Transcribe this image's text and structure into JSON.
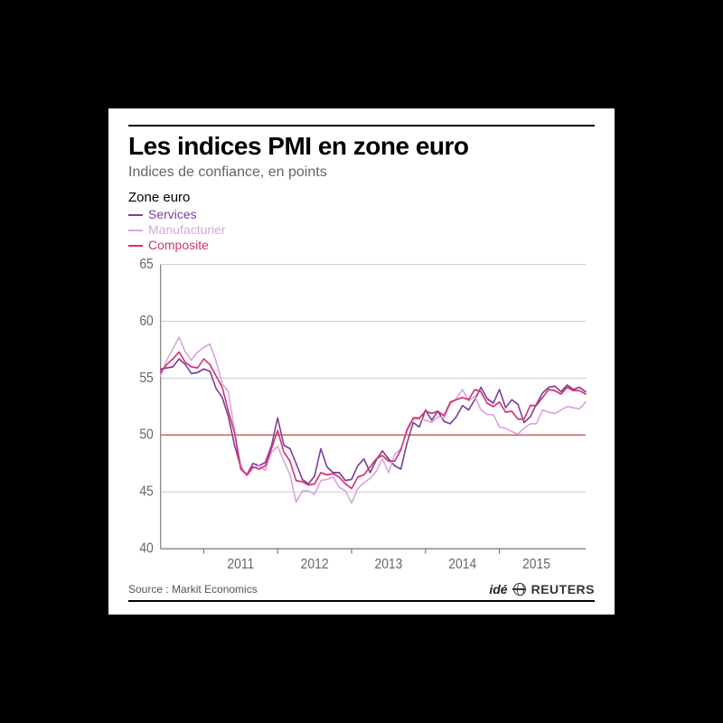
{
  "chart": {
    "type": "line",
    "title": "Les indices PMI en zone euro",
    "subtitle": "Indices de confiance, en points",
    "legend_title": "Zone euro",
    "series": [
      {
        "name": "Services",
        "color": "#7b3f9e",
        "line_width": 1.6,
        "data": [
          55.8,
          55.9,
          56.0,
          56.7,
          56.2,
          55.4,
          55.5,
          55.8,
          55.6,
          54.1,
          53.3,
          51.6,
          49.1,
          47.2,
          46.5,
          47.5,
          47.3,
          47.6,
          49.1,
          51.5,
          49.1,
          48.8,
          47.5,
          46.1,
          45.7,
          46.4,
          48.8,
          47.2,
          46.7,
          46.7,
          46.0,
          46.1,
          47.3,
          47.9,
          46.7,
          47.8,
          48.6,
          47.9,
          47.3,
          47.0,
          49.3,
          51.1,
          50.7,
          52.2,
          51.3,
          52.1,
          51.2,
          51.0,
          51.6,
          52.6,
          52.2,
          53.1,
          54.2,
          53.2,
          52.8,
          54.0,
          52.4,
          53.1,
          52.7,
          51.1,
          51.6,
          52.7,
          53.7,
          54.2,
          54.3,
          53.8,
          54.4,
          54.0,
          54.2,
          53.8
        ]
      },
      {
        "name": "Manufacturier",
        "color": "#d9a6e0",
        "line_width": 1.6,
        "data": [
          55.2,
          56.6,
          57.6,
          58.6,
          57.3,
          56.6,
          57.3,
          57.7,
          58.0,
          56.5,
          54.5,
          53.8,
          50.4,
          47.4,
          46.4,
          47.1,
          47.3,
          46.9,
          48.5,
          49.0,
          47.7,
          46.5,
          44.1,
          45.1,
          45.1,
          44.8,
          46.0,
          46.1,
          46.3,
          45.4,
          45.1,
          44.0,
          45.3,
          45.8,
          46.2,
          46.8,
          47.9,
          46.7,
          48.3,
          48.8,
          50.3,
          51.4,
          51.4,
          51.3,
          51.1,
          51.6,
          51.5,
          52.7,
          53.2,
          54.0,
          53.0,
          53.4,
          52.2,
          51.8,
          51.8,
          50.7,
          50.6,
          50.3,
          50.1,
          50.6,
          51.0,
          51.0,
          52.2,
          52.0,
          51.9,
          52.2,
          52.5,
          52.4,
          52.3,
          52.9
        ]
      },
      {
        "name": "Composite",
        "color": "#d6336c",
        "line_width": 1.6,
        "data": [
          55.5,
          56.2,
          56.7,
          57.3,
          56.4,
          56.0,
          55.9,
          56.7,
          56.2,
          55.2,
          54.2,
          52.1,
          50.2,
          47.0,
          46.5,
          47.2,
          47.0,
          47.3,
          48.8,
          50.4,
          48.5,
          47.7,
          46.0,
          45.9,
          45.6,
          45.7,
          46.7,
          46.5,
          46.6,
          46.3,
          45.7,
          45.3,
          46.3,
          46.5,
          47.2,
          47.9,
          48.2,
          47.7,
          47.7,
          48.7,
          50.5,
          51.5,
          51.5,
          52.1,
          51.9,
          52.1,
          51.7,
          52.9,
          53.1,
          53.3,
          53.1,
          54.0,
          53.8,
          52.8,
          52.5,
          52.9,
          52.0,
          52.1,
          51.4,
          51.4,
          52.6,
          52.6,
          53.3,
          54.0,
          53.9,
          53.6,
          54.2,
          53.9,
          53.9,
          53.6
        ]
      }
    ],
    "x": {
      "start_year": 2010,
      "start_month": 6,
      "count": 70,
      "tick_years": [
        2011,
        2012,
        2013,
        2014,
        2015
      ],
      "label_fontsize": 14,
      "label_color": "#666"
    },
    "y": {
      "min": 40,
      "max": 65,
      "tick_step": 5,
      "label_fontsize": 14,
      "label_color": "#666",
      "grid_color": "#d0d0d0",
      "reference_line": {
        "value": 50,
        "color": "#e03131",
        "width": 1
      }
    },
    "background_color": "#ffffff",
    "axis_color": "#666"
  },
  "footer": {
    "source": "Source : Markit Economics",
    "brand_ide": "idé",
    "brand_reuters": "REUTERS"
  }
}
